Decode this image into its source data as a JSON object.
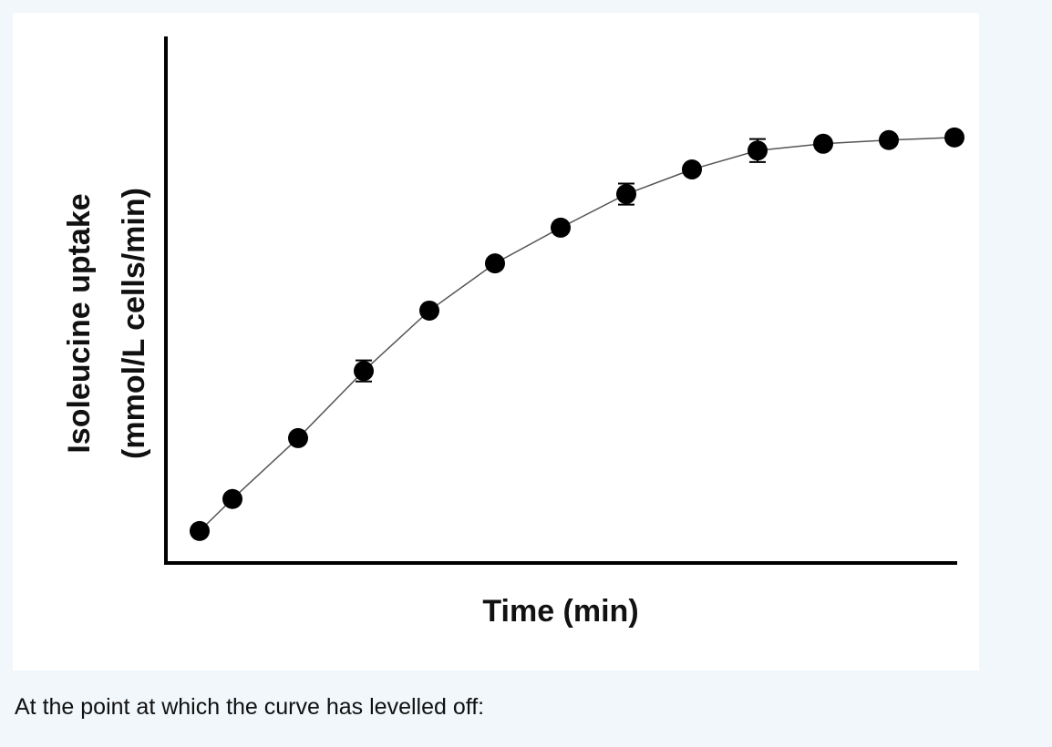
{
  "chart_data": {
    "type": "line",
    "x_label": "Time (min)",
    "y_label": [
      "Isoleucine uptake",
      "(mmol/L cells/min)"
    ],
    "x": [
      0.5,
      1,
      2,
      3,
      4,
      5,
      6,
      7,
      8,
      9,
      10,
      11,
      12
    ],
    "values": [
      6.1,
      12.2,
      23.8,
      36.6,
      48.1,
      57.1,
      63.9,
      70.3,
      75.0,
      78.6,
      79.9,
      80.6,
      81.1
    ],
    "errors": [
      null,
      null,
      null,
      2.0,
      null,
      null,
      null,
      2.0,
      null,
      2.2,
      null,
      null,
      null
    ],
    "color": "#000000",
    "xlim": [
      0,
      12
    ],
    "ylim": [
      0,
      100
    ]
  },
  "caption": "At the point at which the curve has levelled off:"
}
